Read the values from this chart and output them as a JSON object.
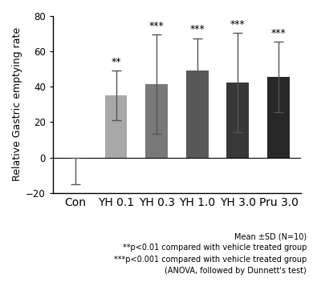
{
  "categories": [
    "Con",
    "YH 0.1",
    "YH 0.3",
    "YH 1.0",
    "YH 3.0",
    "Pru 3.0"
  ],
  "values": [
    0.0,
    35.0,
    41.5,
    49.0,
    42.5,
    45.5
  ],
  "errors_up": [
    0.0,
    14.0,
    28.0,
    18.5,
    28.0,
    20.0
  ],
  "errors_down": [
    15.0,
    14.0,
    28.0,
    18.5,
    28.0,
    20.0
  ],
  "bar_colors": [
    "#c8c8c8",
    "#a8a8a8",
    "#787878",
    "#585858",
    "#383838",
    "#282828"
  ],
  "significance": [
    "",
    "**",
    "***",
    "***",
    "***",
    "***"
  ],
  "ylabel": "Relative Gastric emptying rate",
  "ylim": [
    -20,
    80
  ],
  "yticks": [
    -20,
    0,
    20,
    40,
    60,
    80
  ],
  "footnote_line1": "Mean ±SD (N=10)",
  "footnote_line2": "**p<0.01 compared with vehicle treated group",
  "footnote_line3": "***p<0.001 compared with vehicle treated group",
  "footnote_line4": "(ANOVA, followed by Dunnett's test)",
  "bar_width": 0.55,
  "capsize": 4,
  "background_color": "#ffffff",
  "error_color": "#555555",
  "sig_fontsize": 9,
  "ylabel_fontsize": 9,
  "tick_fontsize": 8.5,
  "footnote_fontsize": 7.0
}
